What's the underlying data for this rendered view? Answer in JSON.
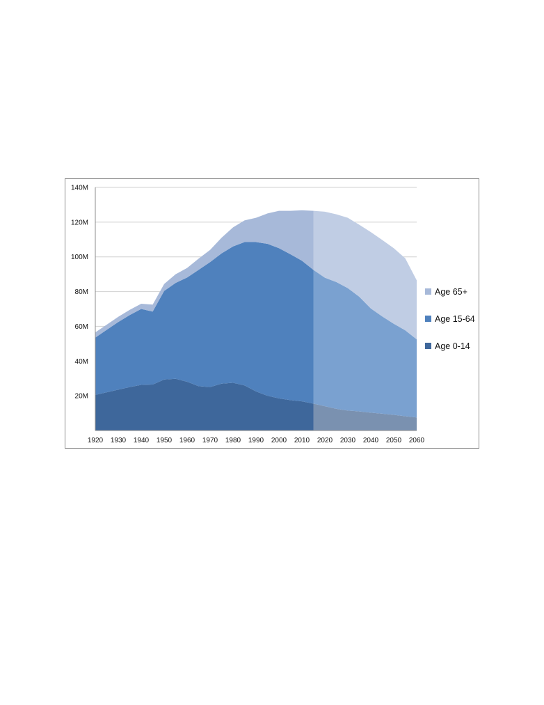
{
  "chart_data": {
    "type": "area",
    "stacked": true,
    "x": [
      1920,
      1925,
      1930,
      1935,
      1940,
      1945,
      1950,
      1955,
      1960,
      1965,
      1970,
      1975,
      1980,
      1985,
      1990,
      1995,
      2000,
      2005,
      2010,
      2015,
      2020,
      2025,
      2030,
      2035,
      2040,
      2045,
      2050,
      2055,
      2060
    ],
    "projection_start": 2015,
    "series": [
      {
        "name": "Age 0-14",
        "color": "#3e679b",
        "projection_color": "#7a91b0",
        "values": [
          20.5,
          22,
          23.5,
          25,
          26.3,
          26.5,
          29.4,
          29.8,
          28.1,
          25.5,
          25.0,
          27.0,
          27.5,
          26.0,
          22.5,
          20.0,
          18.5,
          17.5,
          16.8,
          15.5,
          14.0,
          12.5,
          11.5,
          11.0,
          10.3,
          9.7,
          9.0,
          8.2,
          7.5
        ]
      },
      {
        "name": "Age 15-64",
        "color": "#4f81bd",
        "projection_color": "#7aa1d0",
        "values": [
          33,
          36,
          39,
          41.5,
          43.7,
          42,
          51,
          55.2,
          60,
          67,
          72,
          75,
          78.5,
          82.5,
          86,
          87.5,
          86.5,
          84,
          81,
          77,
          74,
          73,
          70.5,
          66,
          60,
          56,
          52.5,
          49.5,
          45
        ]
      },
      {
        "name": "Age 65+",
        "color": "#a7b9d9",
        "projection_color": "#c0cde4",
        "values": [
          3,
          3,
          3,
          3,
          3,
          4,
          4,
          5,
          5.5,
          6.5,
          7,
          9,
          11,
          12.5,
          14,
          17.5,
          21.5,
          25,
          29,
          34,
          38,
          39,
          40.5,
          41.5,
          44,
          44,
          43.5,
          41.5,
          34
        ]
      }
    ],
    "yticks": [
      "140M",
      "120M",
      "100M",
      "80M",
      "60M",
      "40M",
      "20M"
    ],
    "ytick_values": [
      140,
      120,
      100,
      80,
      60,
      40,
      20
    ],
    "xticks": [
      "1920",
      "1930",
      "1940",
      "1950",
      "1960",
      "1970",
      "1980",
      "1990",
      "2000",
      "2010",
      "2020",
      "2030",
      "2040",
      "2050",
      "2060"
    ],
    "xtick_values": [
      1920,
      1930,
      1940,
      1950,
      1960,
      1970,
      1980,
      1990,
      2000,
      2010,
      2020,
      2030,
      2040,
      2050,
      2060
    ],
    "xlim": [
      1920,
      2060
    ],
    "ylim": [
      0,
      140
    ],
    "grid": true,
    "legend_placement": "right",
    "legend": [
      {
        "label": "Age 65+",
        "color": "#a7b9d9"
      },
      {
        "label": "Age 15-64",
        "color": "#4f81bd"
      },
      {
        "label": "Age 0-14",
        "color": "#3e679b"
      }
    ]
  }
}
